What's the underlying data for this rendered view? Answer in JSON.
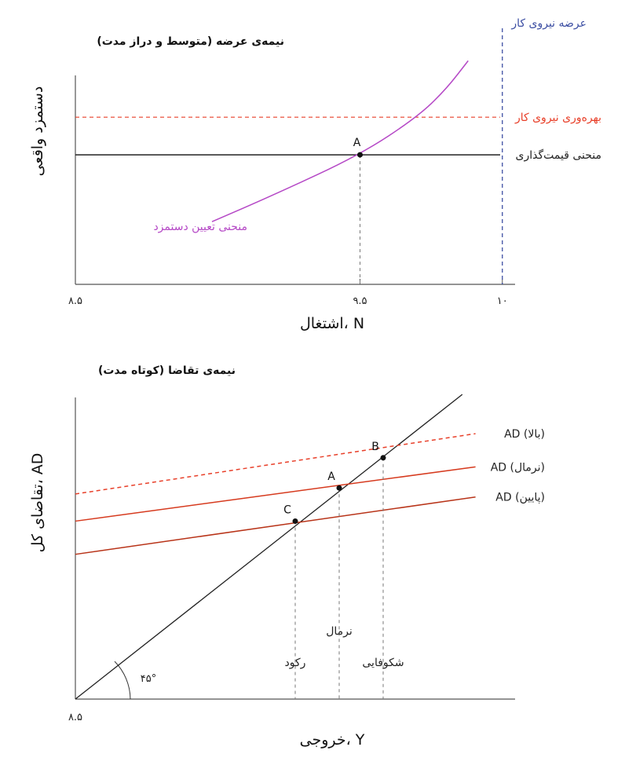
{
  "chart_data": [
    {
      "type": "line",
      "title": "نیمه‌ی عرضه (متوسط و دراز مدت)",
      "xlabel": "اشتغال، N",
      "ylabel": "دستمزد واقعی",
      "x_ticks": [
        {
          "value": 8.5,
          "label": "۸.۵"
        },
        {
          "value": 9.5,
          "label": "۹.۵"
        },
        {
          "value": 10,
          "label": "۱۰"
        }
      ],
      "xlim": [
        8.5,
        10.1
      ],
      "ylim": [
        0,
        1
      ],
      "grid": false,
      "series": [
        {
          "name": "بهره‌وری نیروی کار",
          "color": "#e8402a",
          "dashed": true,
          "kind": "hline",
          "y": 0.8
        },
        {
          "name": "منحنی قیمت‌گذاری",
          "color": "#222222",
          "dashed": false,
          "kind": "hline",
          "y": 0.62
        },
        {
          "name": "عرضه نیروی کار",
          "color": "#3d4fa3",
          "dashed": true,
          "kind": "vline",
          "x": 10
        },
        {
          "name": "منحنی تعیین دستمزد",
          "color": "#b548c6",
          "dashed": false,
          "kind": "curve",
          "points": [
            [
              8.98,
              0.3
            ],
            [
              9.2,
              0.43
            ],
            [
              9.5,
              0.62
            ],
            [
              9.7,
              0.8
            ],
            [
              9.8,
              0.93
            ],
            [
              9.88,
              1.07
            ]
          ]
        }
      ],
      "points": [
        {
          "label": "A",
          "x": 9.5,
          "y": 0.62
        }
      ]
    },
    {
      "type": "line",
      "title": "نیمه‌ی تقاضا (کوتاه مدت)",
      "xlabel": "خروجی، Y",
      "ylabel": "تقاضای کل، AD",
      "x_ticks": [
        {
          "value": 0,
          "label": "۸.۵"
        }
      ],
      "xlim": [
        0,
        1
      ],
      "ylim": [
        0,
        1
      ],
      "grid": false,
      "angle_label": "۴۵°",
      "series": [
        {
          "name": "",
          "color": "#222222",
          "dashed": false,
          "kind": "line",
          "x": [
            0,
            0.88
          ],
          "y": [
            0,
            1.01
          ]
        },
        {
          "name": "AD (بالا)",
          "color": "#e8402a",
          "dashed": true,
          "kind": "line",
          "x": [
            0,
            0.91
          ],
          "y": [
            0.68,
            0.88
          ]
        },
        {
          "name": "AD (نرمال)",
          "color": "#d63a1e",
          "dashed": false,
          "kind": "line",
          "x": [
            0,
            0.91
          ],
          "y": [
            0.59,
            0.77
          ]
        },
        {
          "name": "AD (پایین)",
          "color": "#b83318",
          "dashed": false,
          "kind": "line",
          "x": [
            0,
            0.91
          ],
          "y": [
            0.48,
            0.67
          ]
        }
      ],
      "points": [
        {
          "label": "B",
          "x": 0.7,
          "y": 0.8,
          "vlabel": "شکوفایی"
        },
        {
          "label": "A",
          "x": 0.6,
          "y": 0.7,
          "vlabel": "نرمال"
        },
        {
          "label": "C",
          "x": 0.5,
          "y": 0.59,
          "vlabel": "رکود"
        }
      ]
    }
  ]
}
